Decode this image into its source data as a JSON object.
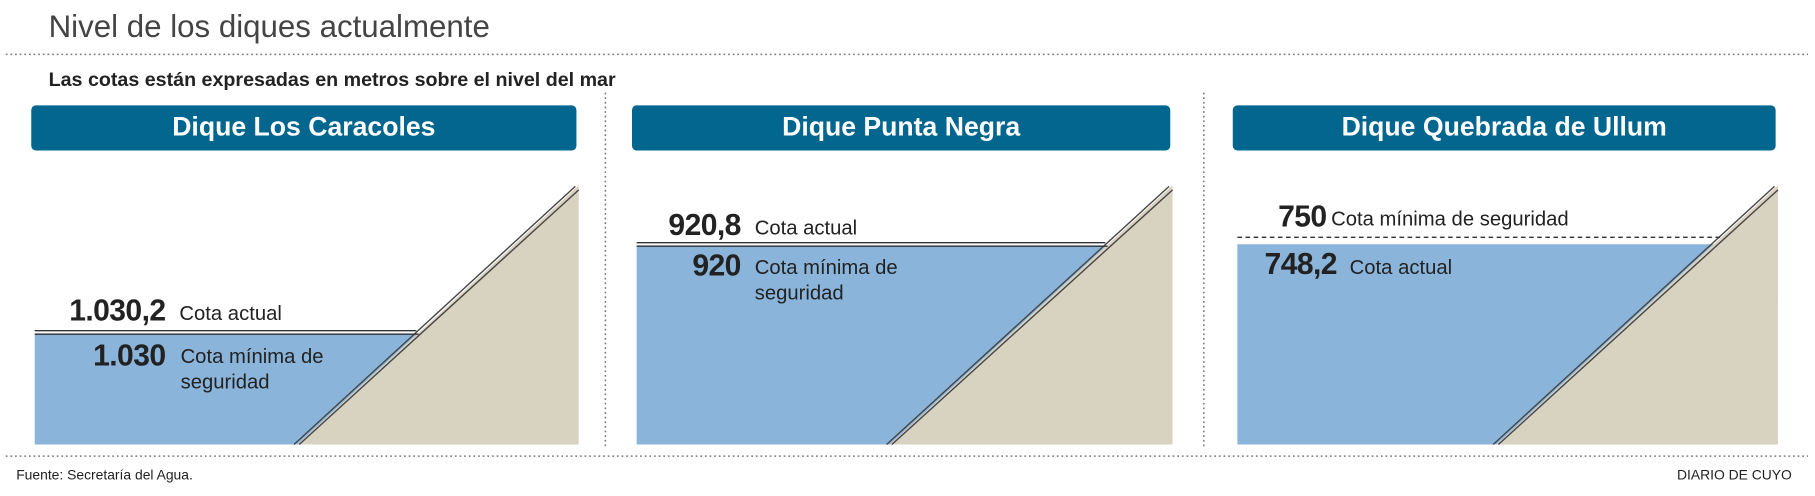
{
  "title": "Nivel de los diques actualmente",
  "subtitle": "Las cotas están expresadas en metros sobre el nivel del mar",
  "dams": [
    {
      "name": "Dique Los Caracoles",
      "levels": [
        {
          "value": "1.030,2",
          "label_lines": [
            "Cota actual"
          ]
        },
        {
          "value": "1.030",
          "label_lines": [
            "Cota mínima de",
            "seguridad"
          ]
        }
      ]
    },
    {
      "name": "Dique Punta Negra",
      "levels": [
        {
          "value": "920,8",
          "label_lines": [
            "Cota actual"
          ]
        },
        {
          "value": "920",
          "label_lines": [
            "Cota mínima de",
            "seguridad"
          ]
        }
      ]
    },
    {
      "name": "Dique Quebrada de Ullum",
      "levels": [
        {
          "value": "750",
          "label_lines": [
            "Cota mínima de seguridad"
          ]
        },
        {
          "value": "748,2",
          "label_lines": [
            "Cota actual"
          ]
        }
      ]
    }
  ],
  "footer": {
    "source": "Fuente: Secretaría del Agua.",
    "brand": "DIARIO DE CUYO"
  }
}
